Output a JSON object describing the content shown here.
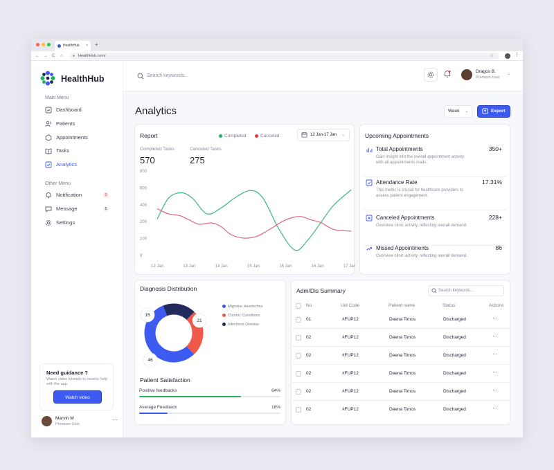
{
  "browser": {
    "tab_title": "HealthHub",
    "tab_close": "×",
    "new_tab": "+",
    "url": "HealthHub.com/",
    "nav": [
      "←",
      "→",
      "C",
      "⌂"
    ],
    "star": "☆",
    "menu": "⋮"
  },
  "brand": {
    "name": "HealthHub",
    "accent": "#3d5bf0"
  },
  "sidebar": {
    "main_menu_label": "Main Menu",
    "main_items": [
      {
        "label": "Dashboard",
        "icon": "dashboard-icon"
      },
      {
        "label": "Patients",
        "icon": "users-icon"
      },
      {
        "label": "Appointments",
        "icon": "hexagon-icon"
      },
      {
        "label": "Tasks",
        "icon": "book-icon"
      },
      {
        "label": "Analytics",
        "icon": "analytics-icon",
        "active": true
      }
    ],
    "other_menu_label": "Other Menu",
    "other_items": [
      {
        "label": "Notification",
        "icon": "bell-icon",
        "badge": "3"
      },
      {
        "label": "Message",
        "icon": "message-icon",
        "badge": "5"
      },
      {
        "label": "Settings",
        "icon": "gear-icon"
      }
    ],
    "guidance": {
      "title": "Need guidance ?",
      "description": "Watch video tutorials to receive help with the app.",
      "button": "Watch video"
    },
    "user": {
      "name": "Marvin M",
      "role": "Premium User",
      "menu": "···"
    }
  },
  "topbar": {
    "search_placeholder": "Search keywords...",
    "user": {
      "name": "Dragos B.",
      "role": "Premium User",
      "chevron": "⌄"
    }
  },
  "page": {
    "title": "Analytics",
    "period": "Week",
    "period_chevron": "⌄",
    "export_label": "Export"
  },
  "report": {
    "title": "Report",
    "legend": [
      {
        "label": "Completed",
        "color": "#22b35e"
      },
      {
        "label": "Canceled",
        "color": "#e5383b"
      }
    ],
    "date_range": "12 Jan-17 Jan",
    "date_chevron": "⌄",
    "completed_label": "Completed Tasks",
    "completed_value": "570",
    "canceled_label": "Canceled Tasks",
    "canceled_value": "275"
  },
  "chart_data": {
    "type": "line",
    "title": "Report",
    "x": [
      "12 Jan",
      "13 Jan",
      "14 Jan",
      "15 Jan",
      "16 Jan",
      "16 Jan",
      "17 Jan"
    ],
    "y_ticks": [
      800,
      600,
      400,
      200,
      100,
      0
    ],
    "ylim": [
      0,
      800
    ],
    "xlabel": "",
    "ylabel": "",
    "grid": false,
    "legend_position": "top",
    "series": [
      {
        "name": "Completed",
        "color": "#3cb878",
        "points": [
          [
            0,
            210
          ],
          [
            0.35,
            330
          ],
          [
            0.75,
            362
          ],
          [
            1.1,
            330
          ],
          [
            1.55,
            240
          ],
          [
            2.0,
            275
          ],
          [
            2.4,
            330
          ],
          [
            2.9,
            375
          ],
          [
            3.3,
            330
          ],
          [
            3.8,
            150
          ],
          [
            4.3,
            30
          ],
          [
            4.7,
            90
          ],
          [
            5.1,
            190
          ],
          [
            5.5,
            290
          ],
          [
            6.05,
            380
          ]
        ]
      },
      {
        "name": "Canceled",
        "color": "#e0637f",
        "points": [
          [
            0,
            270
          ],
          [
            0.35,
            240
          ],
          [
            0.7,
            230
          ],
          [
            1.0,
            205
          ],
          [
            1.3,
            180
          ],
          [
            1.7,
            188
          ],
          [
            2.0,
            165
          ],
          [
            2.3,
            120
          ],
          [
            2.7,
            100
          ],
          [
            3.1,
            110
          ],
          [
            3.5,
            150
          ],
          [
            4.0,
            205
          ],
          [
            4.45,
            225
          ],
          [
            4.8,
            205
          ],
          [
            5.1,
            190
          ],
          [
            5.5,
            150
          ],
          [
            6.05,
            140
          ]
        ]
      }
    ]
  },
  "upcoming": {
    "title": "Upcoming Appointments",
    "items": [
      {
        "title": "Total Appointments",
        "description": "Gain insight into the overall appointment activity with all appointments mads.",
        "value": "350+",
        "icon": "bar-chart-icon"
      },
      {
        "title": "Attendance Rate",
        "description": "This metric is crucial for healthcare providers to assess patient engagement.",
        "value": "17.31%",
        "icon": "check-square-icon"
      },
      {
        "title": "Canceled Appointments",
        "description": "Overview clinic activity, reflecting overall demand.",
        "value": "228+",
        "icon": "x-square-icon"
      },
      {
        "title": "Missed Appointments",
        "description": "Overview clinic activity, reflecting overall demand.",
        "value": "86",
        "icon": "trend-icon"
      }
    ]
  },
  "diagnosis": {
    "title": "Diagnosis Distribution",
    "legend": [
      {
        "label": "Migraine Headaches",
        "color": "#3d5bf0"
      },
      {
        "label": "Chronic Conditions",
        "color": "#f0584a"
      },
      {
        "label": "Infectious Disease",
        "color": "#232a5c"
      }
    ],
    "values": [
      46,
      21,
      15
    ]
  },
  "satisfaction": {
    "title": "Patient Satisfaction",
    "items": [
      {
        "label": "Positive feedbacks",
        "value": "64%",
        "fill": 0.72,
        "color": "#22b35e"
      },
      {
        "label": "Average Feedback",
        "value": "18%",
        "fill": 0.2,
        "color": "#3d5bf0"
      }
    ]
  },
  "admdis": {
    "title": "Adm/Dis Summary",
    "search_placeholder": "Search keywords...",
    "columns": [
      "No",
      "Uid Code",
      "Patient name",
      "Status",
      "Actions"
    ],
    "rows": [
      {
        "no": "01",
        "uid": "#FUP12",
        "name": "Deena Timos",
        "status": "Discharged",
        "actions": "···"
      },
      {
        "no": "02",
        "uid": "#FUP12",
        "name": "Deena Timos",
        "status": "Discharged",
        "actions": "···"
      },
      {
        "no": "02",
        "uid": "#FUP12",
        "name": "Deena Timos",
        "status": "Discharged",
        "actions": "···"
      },
      {
        "no": "02",
        "uid": "#FUP12",
        "name": "Deena Timos",
        "status": "Discharged",
        "actions": "···"
      },
      {
        "no": "02",
        "uid": "#FUP12",
        "name": "Deena Timos",
        "status": "Discharged",
        "actions": "···"
      },
      {
        "no": "02",
        "uid": "#FUP12",
        "name": "Deena Timos",
        "status": "Discharged",
        "actions": "···"
      }
    ]
  }
}
